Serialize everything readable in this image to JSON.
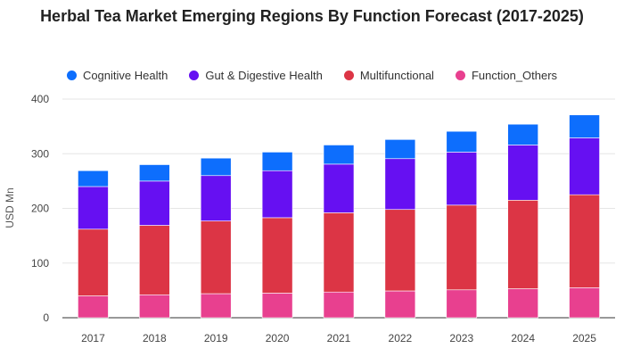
{
  "chart_data": {
    "type": "bar",
    "stacked": true,
    "title": "Herbal Tea Market Emerging Regions By Function Forecast (2017-2025)",
    "ylabel": "USD Mn",
    "ylim": [
      0,
      400
    ],
    "yticks": [
      0,
      100,
      200,
      300,
      400
    ],
    "grid": true,
    "legend_position": "top",
    "categories": [
      "2017",
      "2018",
      "2019",
      "2020",
      "2021",
      "2022",
      "2023",
      "2024",
      "2025"
    ],
    "series": [
      {
        "name": "Function_Others",
        "color": "#e8408f",
        "values": [
          40,
          42,
          44,
          45,
          47,
          49,
          51,
          53,
          55
        ]
      },
      {
        "name": "Multifunctional",
        "color": "#dc3545",
        "values": [
          122,
          127,
          133,
          138,
          145,
          149,
          155,
          162,
          170
        ]
      },
      {
        "name": "Gut & Digestive Health",
        "color": "#6610f2",
        "values": [
          78,
          81,
          83,
          86,
          89,
          93,
          97,
          101,
          104
        ]
      },
      {
        "name": "Cognitive Health",
        "color": "#0d6efd",
        "values": [
          29,
          30,
          32,
          34,
          35,
          35,
          38,
          38,
          42
        ]
      }
    ],
    "legend_order": [
      "Cognitive Health",
      "Gut & Digestive Health",
      "Multifunctional",
      "Function_Others"
    ]
  }
}
